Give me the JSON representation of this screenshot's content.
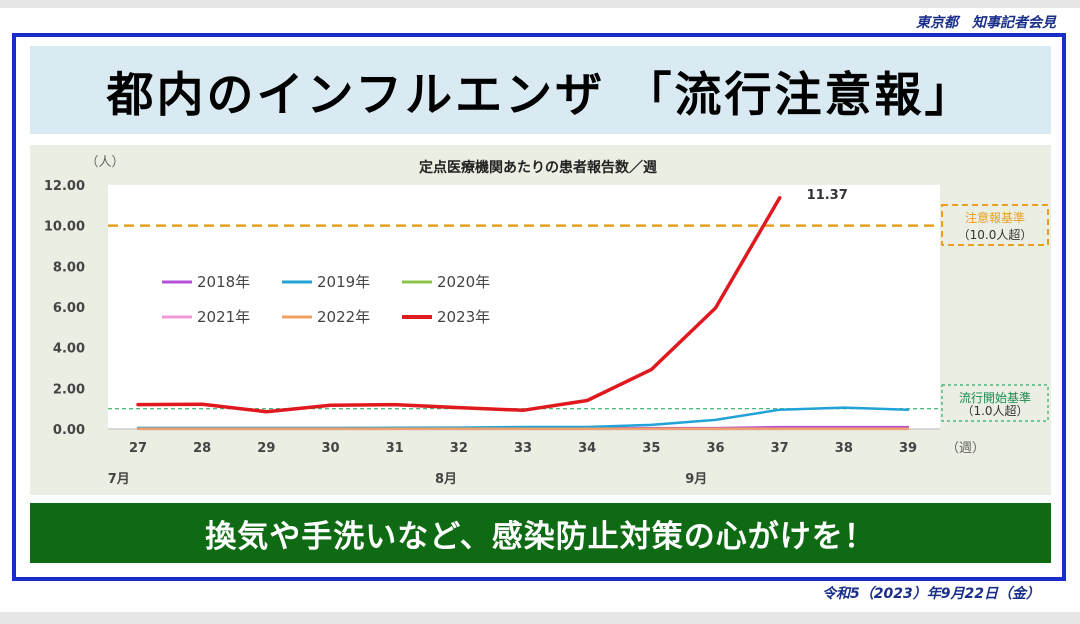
{
  "header": {
    "source": "東京都　知事記者会見"
  },
  "title": "都内のインフルエンザ 「流行注意報」",
  "banner": "換気や手洗いなど、感染防止対策の心がけを！",
  "date": "令和5（2023）年9月22日（金）",
  "colors": {
    "frame": "#1a2cc9",
    "title_bg": "#d9eaf2",
    "chart_bg": "#ebeee3",
    "banner_bg": "#0e6b14",
    "warning": "#e8a020",
    "epidemic": "#2fae6a"
  },
  "chart_data": {
    "type": "line",
    "title": "定点医療機関あたりの患者報告数／週",
    "y_unit": "（人）",
    "x_unit": "（週）",
    "ylim": [
      0,
      12
    ],
    "y_ticks": [
      "0.00",
      "2.00",
      "4.00",
      "6.00",
      "8.00",
      "10.00",
      "12.00"
    ],
    "x": [
      27,
      28,
      29,
      30,
      31,
      32,
      33,
      34,
      35,
      36,
      37,
      38,
      39
    ],
    "x_labels": [
      "27",
      "28",
      "29",
      "30",
      "31",
      "32",
      "33",
      "34",
      "35",
      "36",
      "37",
      "38",
      "39"
    ],
    "months": [
      {
        "label": "7月",
        "week": 26.7
      },
      {
        "label": "8月",
        "week": 31.8
      },
      {
        "label": "9月",
        "week": 35.7
      }
    ],
    "grid": false,
    "legend_position": "upper-left",
    "series": [
      {
        "name": "2018年",
        "color": "#b44fd6",
        "values": [
          0.05,
          0.05,
          0.05,
          0.05,
          0.05,
          0.05,
          0.05,
          0.05,
          0.05,
          0.05,
          0.1,
          0.1,
          0.1
        ]
      },
      {
        "name": "2019年",
        "color": "#21a3d8",
        "values": [
          0.05,
          0.05,
          0.05,
          0.05,
          0.06,
          0.07,
          0.1,
          0.1,
          0.2,
          0.45,
          0.95,
          1.05,
          0.95
        ]
      },
      {
        "name": "2020年",
        "color": "#8bc34a",
        "values": [
          0.0,
          0.0,
          0.0,
          0.0,
          0.0,
          0.0,
          0.0,
          0.0,
          0.0,
          0.0,
          0.0,
          0.0,
          0.0
        ]
      },
      {
        "name": "2021年",
        "color": "#f09ad7",
        "values": [
          0.0,
          0.0,
          0.0,
          0.0,
          0.0,
          0.0,
          0.0,
          0.0,
          0.0,
          0.0,
          0.0,
          0.0,
          0.0
        ]
      },
      {
        "name": "2022年",
        "color": "#f0a060",
        "values": [
          0.02,
          0.02,
          0.02,
          0.02,
          0.02,
          0.02,
          0.02,
          0.02,
          0.02,
          0.02,
          0.02,
          0.02,
          0.02
        ]
      },
      {
        "name": "2023年",
        "color": "#e0191f",
        "values": [
          1.2,
          1.22,
          0.85,
          1.17,
          1.2,
          1.05,
          0.92,
          1.4,
          2.92,
          5.95,
          11.37,
          null,
          null
        ]
      }
    ],
    "annotations": [
      {
        "text": "11.37",
        "series": "2023年",
        "week": 37,
        "value": 11.37
      }
    ],
    "thresholds": [
      {
        "value": 10.0,
        "label": "注意報基準",
        "sublabel": "（10.0人超）",
        "color": "#e8a020"
      },
      {
        "value": 1.0,
        "label": "流行開始基準",
        "sublabel": "（1.0人超）",
        "color": "#2fae6a"
      }
    ]
  }
}
